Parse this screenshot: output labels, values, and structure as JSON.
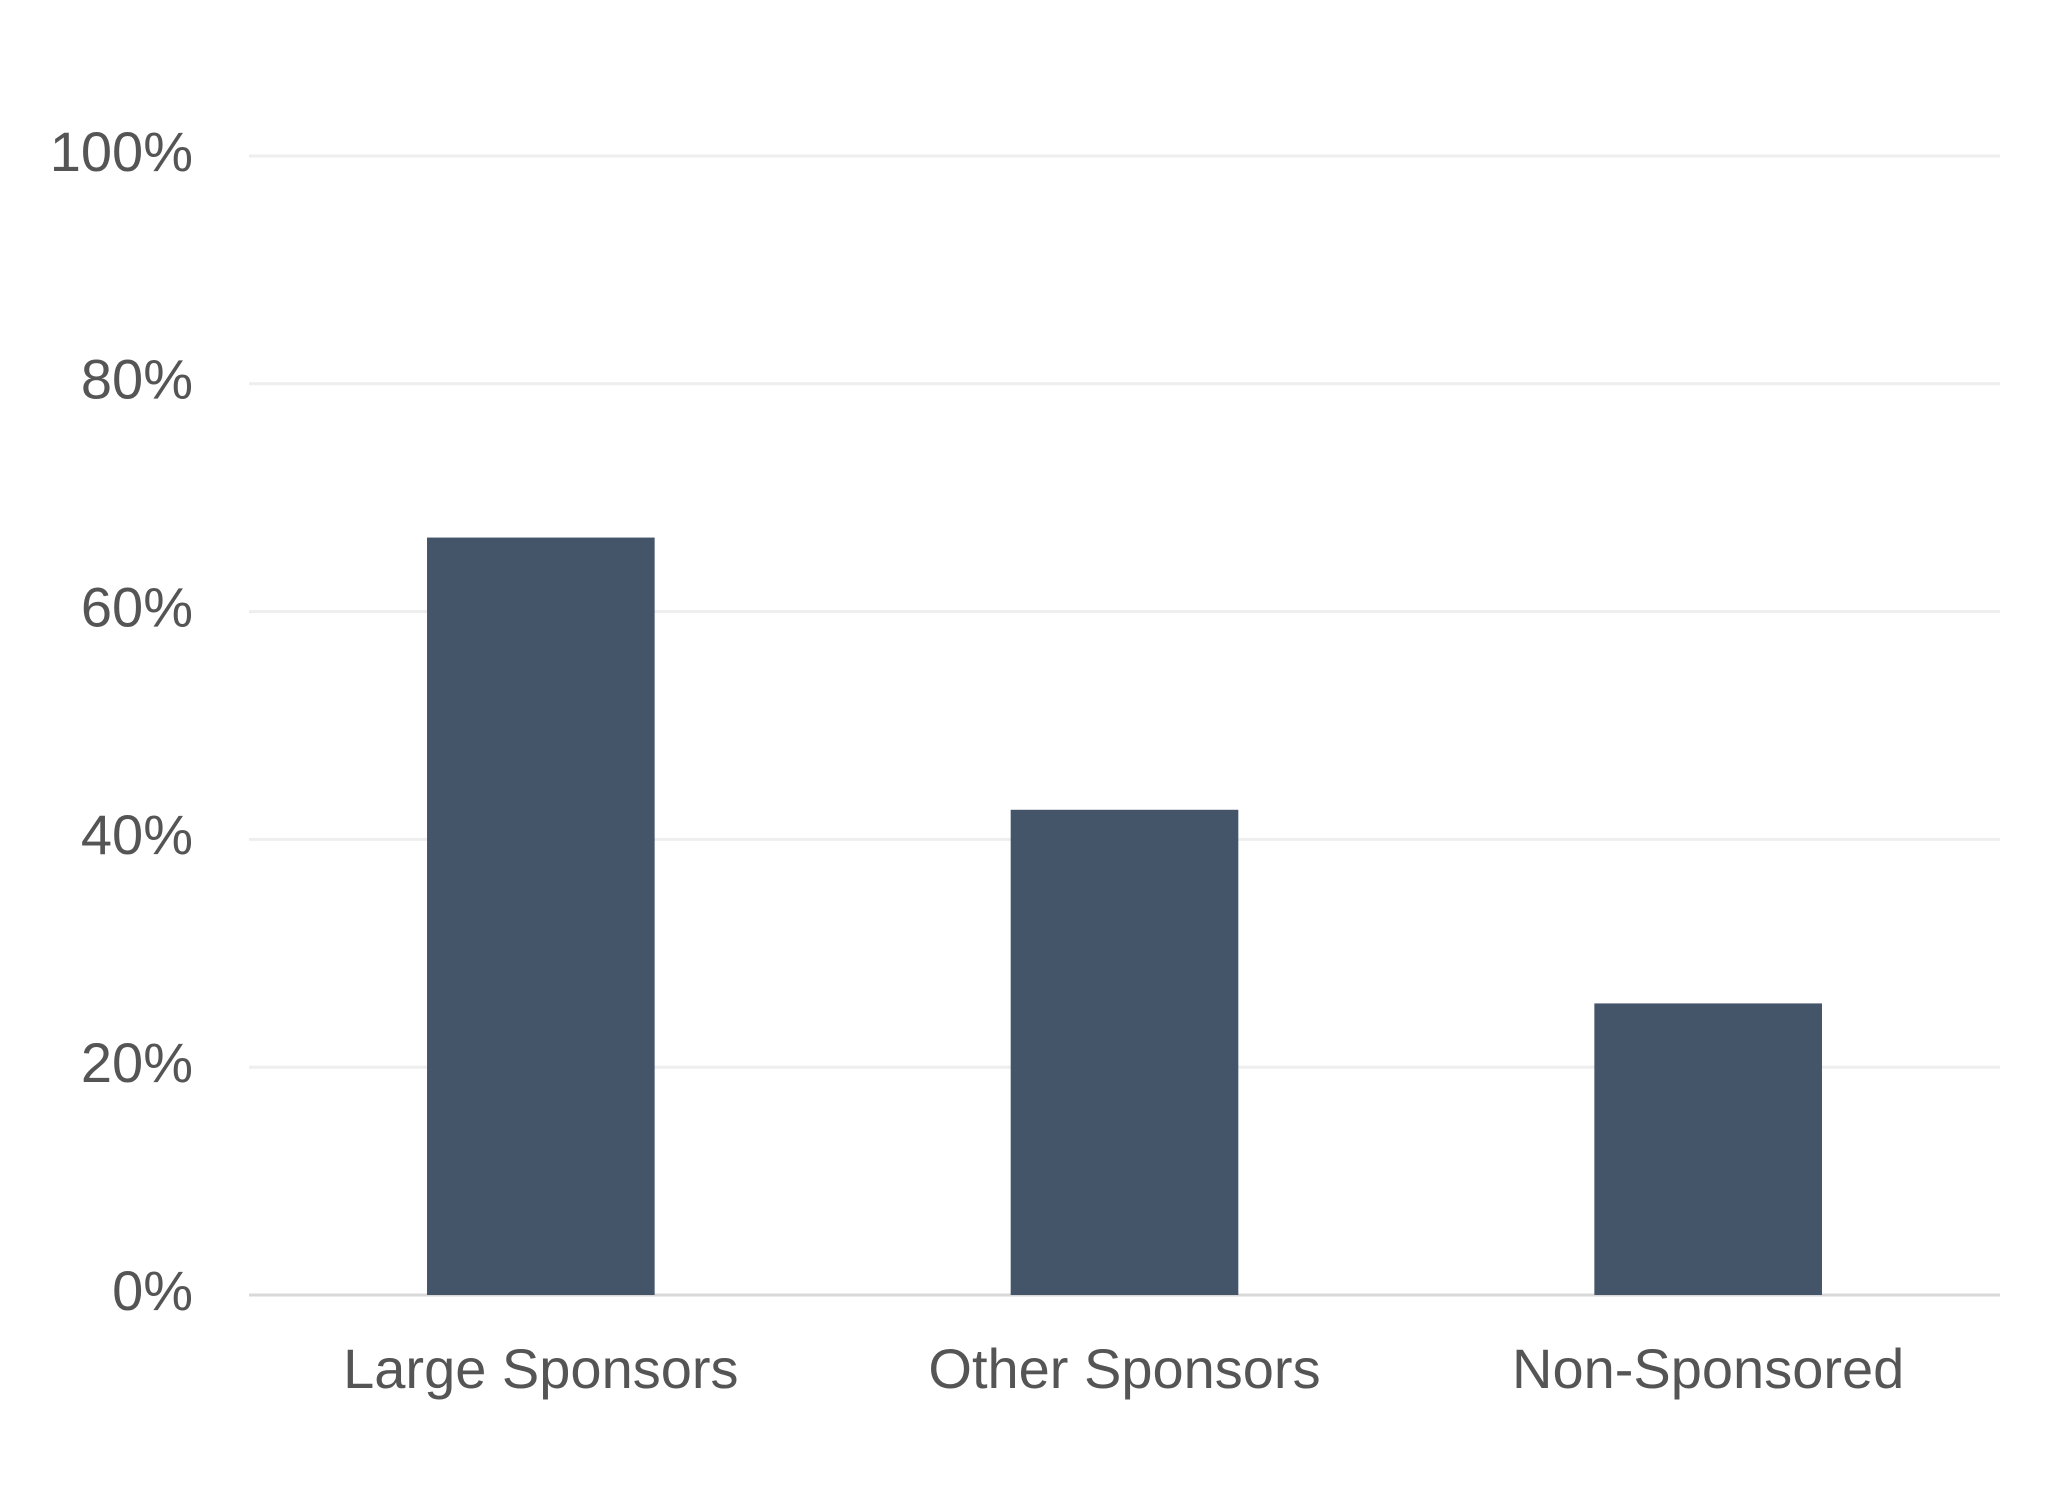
{
  "chart_data": {
    "type": "bar",
    "categories": [
      "Large Sponsors",
      "Other Sponsors",
      "Non-Sponsored"
    ],
    "values": [
      66.5,
      42.6,
      25.6
    ],
    "color": "#455569",
    "ylim": [
      0,
      100
    ],
    "yticks": [
      {
        "value": 0,
        "label": "0%"
      },
      {
        "value": 20,
        "label": "20%"
      },
      {
        "value": 40,
        "label": "40%"
      },
      {
        "value": 60,
        "label": "60%"
      },
      {
        "value": 80,
        "label": "80%"
      },
      {
        "value": 100,
        "label": "100%"
      }
    ],
    "grid": true
  }
}
